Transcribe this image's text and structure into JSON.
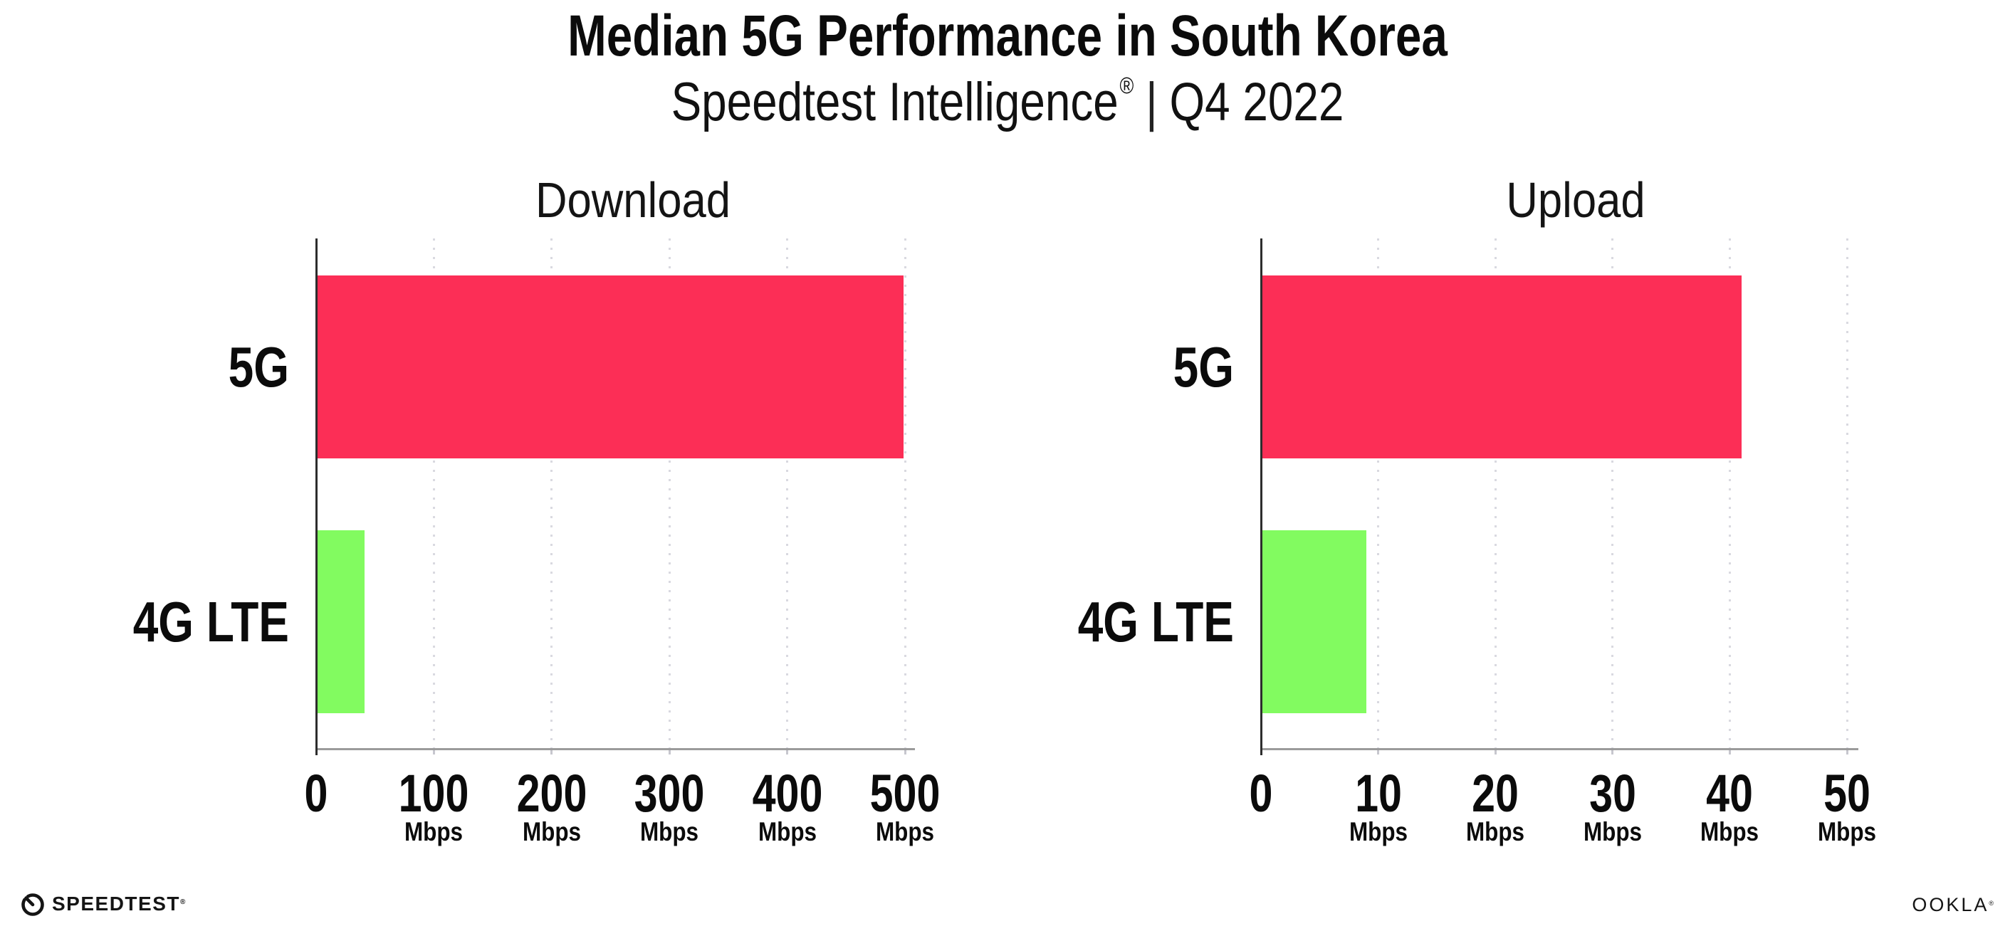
{
  "title": "Median 5G Performance in South Korea",
  "subtitle": {
    "brand": "Speedtest Intelligence",
    "registered_mark": "®",
    "divider": "|",
    "period": "Q4 2022"
  },
  "colors": {
    "bar_5g": "#FC2E56",
    "bar_4g_lte": "#82FB60",
    "x_axis_line": "#9B9B9B",
    "y_axis_line": "#2D2D2D",
    "gridline": "#D9D9E0",
    "text": "#0B0B0B"
  },
  "chart_data": [
    {
      "type": "bar",
      "orientation": "horizontal",
      "title": "Download",
      "categories": [
        "5G",
        "4G LTE"
      ],
      "values": [
        499,
        41
      ],
      "unit": "Mbps",
      "xlim": [
        0,
        500
      ],
      "xticks": [
        0,
        100,
        200,
        300,
        400,
        500
      ],
      "bar_colors": [
        "#FC2E56",
        "#82FB60"
      ],
      "grid": "dotted-vertical",
      "legend": "none"
    },
    {
      "type": "bar",
      "orientation": "horizontal",
      "title": "Upload",
      "categories": [
        "5G",
        "4G LTE"
      ],
      "values": [
        41,
        9
      ],
      "unit": "Mbps",
      "xlim": [
        0,
        50
      ],
      "xticks": [
        0,
        10,
        20,
        30,
        40,
        50
      ],
      "bar_colors": [
        "#FC2E56",
        "#82FB60"
      ],
      "grid": "dotted-vertical",
      "legend": "none"
    }
  ],
  "footer": {
    "speedtest_wordmark": "SPEEDTEST",
    "speedtest_registered_mark": "®",
    "gauge_icon": "speedtest-gauge-icon",
    "ookla_wordmark": "OOKLA",
    "ookla_registered_mark": "®"
  }
}
